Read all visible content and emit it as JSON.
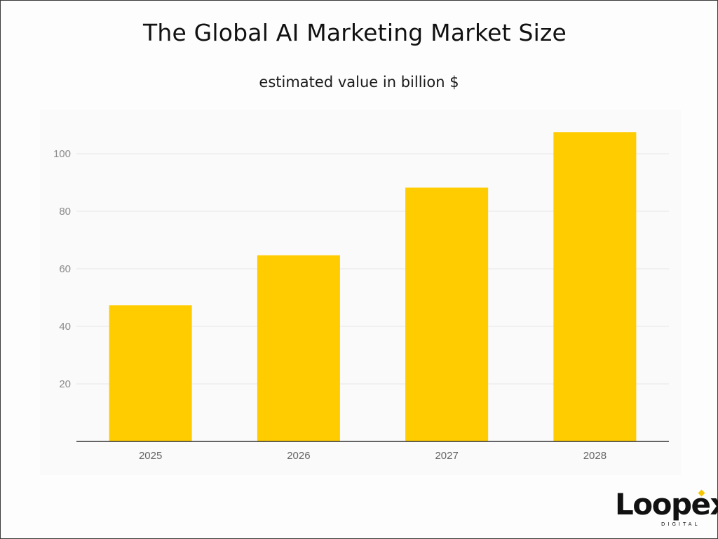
{
  "chart_data": {
    "type": "bar",
    "title": "The Global AI Marketing Market Size",
    "subtitle": "estimated value in billion $",
    "categories": [
      "2025",
      "2026",
      "2027",
      "2028"
    ],
    "values": [
      47.3,
      64.7,
      88.2,
      107.5
    ],
    "yticks": [
      20,
      40,
      60,
      80,
      100
    ],
    "ylim": [
      0,
      115
    ],
    "grid": true,
    "legend": "none",
    "bar_color": "#ffcc00",
    "axis_color": "#333333",
    "grid_color": "#e6e6e6",
    "tick_label_color": "#8a8a8a"
  },
  "logo": {
    "word": "Loopex",
    "sub": "DIGITAL",
    "accent_color": "#f7c600"
  }
}
